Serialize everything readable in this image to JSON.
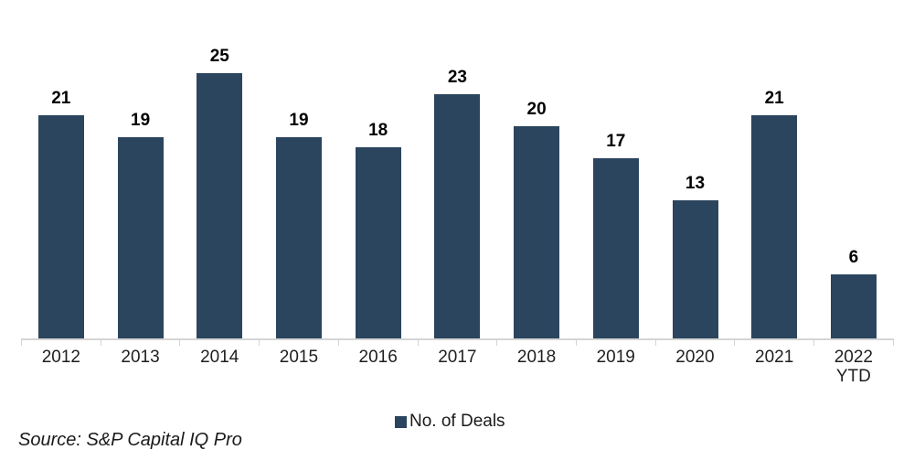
{
  "chart_data": {
    "type": "bar",
    "title": "",
    "categories": [
      "2012",
      "2013",
      "2014",
      "2015",
      "2016",
      "2017",
      "2018",
      "2019",
      "2020",
      "2021",
      "2022 YTD"
    ],
    "values": [
      21,
      19,
      25,
      19,
      18,
      23,
      20,
      17,
      13,
      21,
      6
    ],
    "series": [
      {
        "name": "No. of Deals",
        "values": [
          21,
          19,
          25,
          19,
          18,
          23,
          20,
          17,
          13,
          21,
          6
        ]
      }
    ],
    "xlabel": "",
    "ylabel": "",
    "ylim": [
      0,
      30
    ],
    "grid": false,
    "y_axis_visible": false,
    "data_labels_visible": true,
    "legend_position": "bottom-center",
    "bar_color": "#2b455e",
    "axis_line_color": "#d4d4d4",
    "data_label_color": "#000000",
    "tick_label_color": "#1f1f1f"
  },
  "legend": {
    "items": [
      {
        "label": "No. of Deals",
        "color": "#2b455e"
      }
    ]
  },
  "source_note": "Source: S&P Capital IQ Pro"
}
